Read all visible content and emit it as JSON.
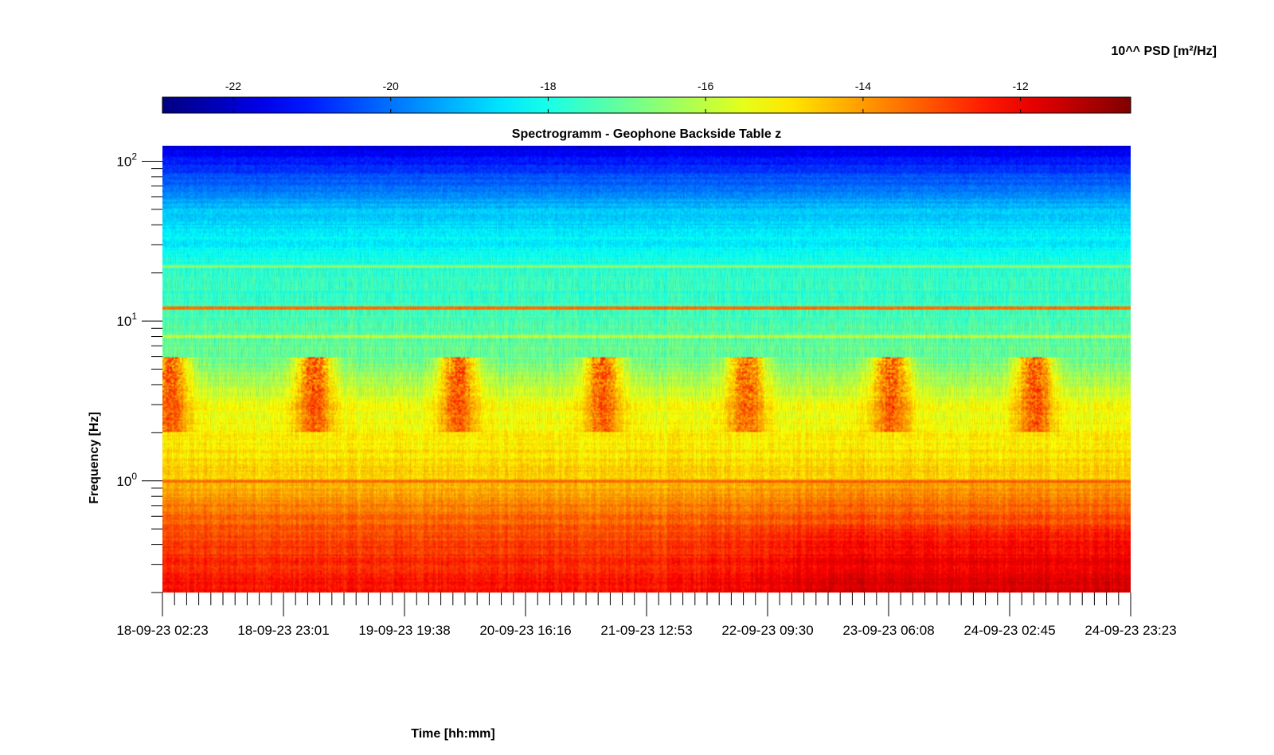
{
  "chart_data": {
    "type": "heatmap",
    "title": "Spectrogramm - Geophone Backside Table z",
    "xlabel": "Time [hh:mm]",
    "ylabel": "Frequency [Hz]",
    "x_ticks": [
      "18-09-23 02:23",
      "18-09-23 23:01",
      "19-09-23 19:38",
      "20-09-23 16:16",
      "21-09-23 12:53",
      "22-09-23 09:30",
      "23-09-23 06:08",
      "24-09-23 02:45",
      "24-09-23 23:23"
    ],
    "y_scale": "log",
    "y_ticks": [
      {
        "base": "10",
        "exp": "0",
        "value": 1
      },
      {
        "base": "10",
        "exp": "1",
        "value": 10
      },
      {
        "base": "10",
        "exp": "2",
        "value": 100
      }
    ],
    "ylim": [
      0.2,
      125
    ],
    "colorbar": {
      "label": "10^^ PSD [m²/Hz]",
      "ticks": [
        "-22",
        "-20",
        "-18",
        "-16",
        "-14",
        "-12"
      ],
      "tick_values": [
        -22,
        -20,
        -18,
        -16,
        -14,
        -12
      ],
      "range": [
        -22.9,
        -10.6
      ],
      "colormap": "jet",
      "location": "top"
    },
    "value_profile_by_frequency": [
      {
        "freq_hz": 0.2,
        "log10_psd": -12.2
      },
      {
        "freq_hz": 0.4,
        "log10_psd": -12.9
      },
      {
        "freq_hz": 0.7,
        "log10_psd": -13.7
      },
      {
        "freq_hz": 1.0,
        "log10_psd": -14.6
      },
      {
        "freq_hz": 3.0,
        "log10_psd": -15.4
      },
      {
        "freq_hz": 6.0,
        "log10_psd": -17.0
      },
      {
        "freq_hz": 20,
        "log10_psd": -17.8
      },
      {
        "freq_hz": 50,
        "log10_psd": -19.0
      },
      {
        "freq_hz": 125,
        "log10_psd": -21.8
      }
    ],
    "features": [
      {
        "type": "daily activity bursts",
        "freq_range_hz": [
          2,
          6
        ],
        "log10_psd": -13.0,
        "days": 6
      },
      {
        "type": "horizontal line",
        "freq_hz": 12,
        "log10_psd": -13.5
      },
      {
        "type": "horizontal line",
        "freq_hz": 1.0,
        "log10_psd": -13.5
      },
      {
        "type": "horizontal line",
        "freq_hz": 22,
        "log10_psd": -16.6
      },
      {
        "type": "horizontal line",
        "freq_hz": 8,
        "log10_psd": -16.0
      }
    ]
  }
}
